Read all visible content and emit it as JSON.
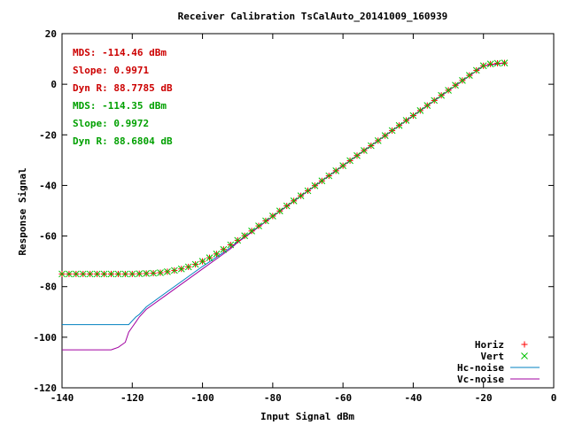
{
  "chart_data": {
    "type": "scatter",
    "title": "Receiver Calibration TsCalAuto_20141009_160939",
    "xlabel": "Input Signal dBm",
    "ylabel": "Response Signal",
    "xlim": [
      -140,
      0
    ],
    "ylim": [
      -120,
      20
    ],
    "xticks": [
      -140,
      -120,
      -100,
      -80,
      -60,
      -40,
      -20,
      0
    ],
    "yticks": [
      -120,
      -100,
      -80,
      -60,
      -40,
      -20,
      0,
      20
    ],
    "grid": false,
    "legend_position": "bottom-right",
    "annotations": [
      {
        "text": "MDS: -114.46 dBm",
        "color": "#cc0000"
      },
      {
        "text": "Slope: 0.9971",
        "color": "#cc0000"
      },
      {
        "text": "Dyn R: 88.7785 dB",
        "color": "#cc0000"
      },
      {
        "text": "MDS: -114.35 dBm",
        "color": "#00a000"
      },
      {
        "text": "Slope: 0.9972",
        "color": "#00a000"
      },
      {
        "text": "Dyn R: 88.6804 dB",
        "color": "#00a000"
      }
    ],
    "series": [
      {
        "name": "Horiz",
        "marker": "plus",
        "color": "#ff0000",
        "x": [
          -140,
          -138,
          -136,
          -134,
          -132,
          -130,
          -128,
          -126,
          -124,
          -122,
          -120,
          -118,
          -116,
          -114,
          -112,
          -110,
          -108,
          -106,
          -104,
          -102,
          -100,
          -98,
          -96,
          -94,
          -92,
          -90,
          -88,
          -86,
          -84,
          -82,
          -80,
          -78,
          -76,
          -74,
          -72,
          -70,
          -68,
          -66,
          -64,
          -62,
          -60,
          -58,
          -56,
          -54,
          -52,
          -50,
          -48,
          -46,
          -44,
          -42,
          -40,
          -38,
          -36,
          -34,
          -32,
          -30,
          -28,
          -26,
          -24,
          -22,
          -20,
          -18,
          -16,
          -14
        ],
        "y": [
          -75,
          -75,
          -75,
          -75,
          -75,
          -75,
          -75,
          -75,
          -75,
          -75,
          -75,
          -74.9,
          -74.8,
          -74.7,
          -74.5,
          -74.1,
          -73.6,
          -73,
          -72.2,
          -71.2,
          -70,
          -68.6,
          -67.1,
          -65.3,
          -63.5,
          -61.7,
          -59.9,
          -58,
          -56,
          -54,
          -52.1,
          -50.1,
          -48.1,
          -46.1,
          -44.1,
          -42.1,
          -40.1,
          -38.2,
          -36.2,
          -34.2,
          -32.2,
          -30.2,
          -28.2,
          -26.2,
          -24.3,
          -22.3,
          -20.3,
          -18.3,
          -16.3,
          -14.3,
          -12.4,
          -10.4,
          -8.4,
          -6.4,
          -4.4,
          -2.4,
          -0.4,
          1.5,
          3.5,
          5.5,
          7.3,
          8,
          8.3,
          8.4
        ]
      },
      {
        "name": "Vert",
        "marker": "cross",
        "color": "#00c000",
        "x": [
          -140,
          -138,
          -136,
          -134,
          -132,
          -130,
          -128,
          -126,
          -124,
          -122,
          -120,
          -118,
          -116,
          -114,
          -112,
          -110,
          -108,
          -106,
          -104,
          -102,
          -100,
          -98,
          -96,
          -94,
          -92,
          -90,
          -88,
          -86,
          -84,
          -82,
          -80,
          -78,
          -76,
          -74,
          -72,
          -70,
          -68,
          -66,
          -64,
          -62,
          -60,
          -58,
          -56,
          -54,
          -52,
          -50,
          -48,
          -46,
          -44,
          -42,
          -40,
          -38,
          -36,
          -34,
          -32,
          -30,
          -28,
          -26,
          -24,
          -22,
          -20,
          -18,
          -16,
          -14
        ],
        "y": [
          -75,
          -75,
          -75,
          -75,
          -75,
          -75,
          -75,
          -75,
          -75,
          -75,
          -75,
          -74.9,
          -74.8,
          -74.7,
          -74.5,
          -74.1,
          -73.6,
          -73,
          -72.2,
          -71.2,
          -70,
          -68.6,
          -67.1,
          -65.3,
          -63.5,
          -61.7,
          -59.9,
          -58,
          -56,
          -54,
          -52.1,
          -50.1,
          -48.1,
          -46.1,
          -44.1,
          -42.1,
          -40.1,
          -38.2,
          -36.2,
          -34.2,
          -32.2,
          -30.2,
          -28.2,
          -26.2,
          -24.3,
          -22.3,
          -20.3,
          -18.3,
          -16.3,
          -14.3,
          -12.4,
          -10.4,
          -8.4,
          -6.4,
          -4.4,
          -2.4,
          -0.4,
          1.5,
          3.5,
          5.5,
          7.3,
          8,
          8.3,
          8.4
        ]
      },
      {
        "name": "Hc-noise",
        "marker": "line",
        "color": "#0080c0",
        "x": [
          -140,
          -122,
          -121,
          -120,
          -119,
          -118,
          -116,
          -110,
          -100,
          -94,
          -92,
          -90,
          -86,
          -80,
          -60,
          -40,
          -20,
          -14
        ],
        "y": [
          -95,
          -95,
          -95,
          -93.5,
          -92,
          -91,
          -88,
          -82,
          -72,
          -66.5,
          -64.5,
          -62.3,
          -58.3,
          -52.2,
          -32.2,
          -12.4,
          7.3,
          8.4
        ]
      },
      {
        "name": "Vc-noise",
        "marker": "line",
        "color": "#a000a0",
        "x": [
          -140,
          -126,
          -124,
          -122,
          -121,
          -120,
          -119,
          -118,
          -116,
          -110,
          -100,
          -94,
          -92,
          -90,
          -86,
          -80,
          -60,
          -40,
          -20,
          -14
        ],
        "y": [
          -105,
          -105,
          -104,
          -102,
          -98,
          -96,
          -94,
          -92,
          -89,
          -83,
          -73,
          -67,
          -65,
          -62.5,
          -58.5,
          -52.2,
          -32.2,
          -12.4,
          7.3,
          8.4
        ]
      }
    ]
  }
}
